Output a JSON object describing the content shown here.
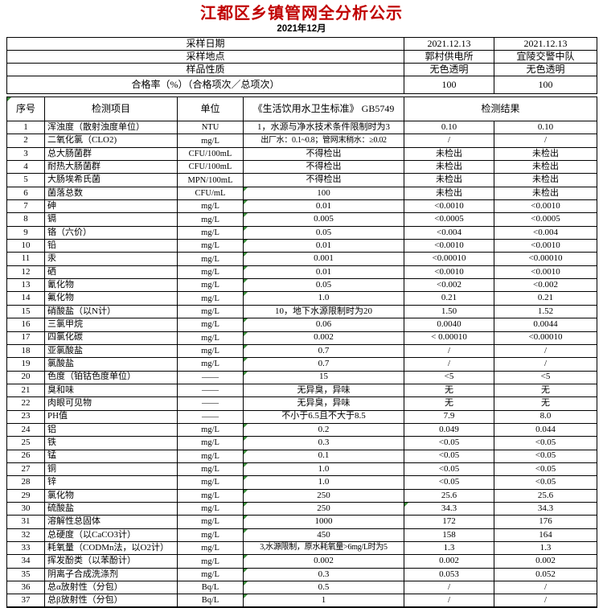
{
  "page": {
    "title": "江都区乡镇管网全分析公示",
    "subtitle": "2021年12月"
  },
  "colors": {
    "title_red": "#c00000",
    "flag_green": "#3c8c3c",
    "border": "#000000"
  },
  "info_table": {
    "rows": [
      {
        "label": "采样日期",
        "v1": "2021.12.13",
        "v2": "2021.12.13"
      },
      {
        "label": "采样地点",
        "v1": "郭村供电所",
        "v2": "宜陵交警中队"
      },
      {
        "label": "样品性质",
        "v1": "无色透明",
        "v2": "无色透明"
      },
      {
        "label": "合格率（%）（合格项次／总项次）",
        "v1": "100",
        "v2": "100",
        "tall": true
      }
    ]
  },
  "main_table": {
    "header": {
      "no": "序号",
      "item": "检测项目",
      "unit": "单位",
      "standard": "《生活饮用水卫生标准》 GB5749",
      "result": "检测结果"
    },
    "rows": [
      {
        "no": "1",
        "item": "浑浊度（散射浊度单位）",
        "unit": "NTU",
        "standard": "1，水源与净水技术条件限制时为3",
        "r1": "0.10",
        "r2": "0.10",
        "flag_std": false
      },
      {
        "no": "2",
        "item": "二氧化氯（CLO2)",
        "unit": "mg/L",
        "standard": "出厂水：0.1~0.8；管网末稍水：≥0.02",
        "r1": "/",
        "r2": "/",
        "flag_std": false
      },
      {
        "no": "3",
        "item": "总大肠菌群",
        "unit": "CFU/100mL",
        "standard": "不得检出",
        "r1": "未检出",
        "r2": "未检出",
        "flag_std": false
      },
      {
        "no": "4",
        "item": "耐热大肠菌群",
        "unit": "CFU/100mL",
        "standard": "不得检出",
        "r1": "未检出",
        "r2": "未检出",
        "flag_std": false
      },
      {
        "no": "5",
        "item": "大肠埃希氏菌",
        "unit": "MPN/100mL",
        "standard": "不得检出",
        "r1": "未检出",
        "r2": "未检出",
        "flag_std": false
      },
      {
        "no": "6",
        "item": "菌落总数",
        "unit": "CFU/mL",
        "standard": "100",
        "r1": "未检出",
        "r2": "未检出",
        "flag_std": true
      },
      {
        "no": "7",
        "item": "砷",
        "unit": "mg/L",
        "standard": "0.01",
        "r1": "<0.0010",
        "r2": "<0.0010",
        "flag_std": true
      },
      {
        "no": "8",
        "item": "镉",
        "unit": "mg/L",
        "standard": "0.005",
        "r1": "<0.0005",
        "r2": "<0.0005",
        "flag_std": true
      },
      {
        "no": "9",
        "item": "铬（六价）",
        "unit": "mg/L",
        "standard": "0.05",
        "r1": "<0.004",
        "r2": "<0.004",
        "flag_std": true
      },
      {
        "no": "10",
        "item": "铅",
        "unit": "mg/L",
        "standard": "0.01",
        "r1": "<0.0010",
        "r2": "<0.0010",
        "flag_std": true
      },
      {
        "no": "11",
        "item": "汞",
        "unit": "mg/L",
        "standard": "0.001",
        "r1": "<0.00010",
        "r2": "<0.00010",
        "flag_std": true
      },
      {
        "no": "12",
        "item": "硒",
        "unit": "mg/L",
        "standard": "0.01",
        "r1": "<0.0010",
        "r2": "<0.0010",
        "flag_std": true
      },
      {
        "no": "13",
        "item": "氰化物",
        "unit": "mg/L",
        "standard": "0.05",
        "r1": "<0.002",
        "r2": "<0.002",
        "flag_std": true
      },
      {
        "no": "14",
        "item": "氟化物",
        "unit": "mg/L",
        "standard": "1.0",
        "r1": "0.21",
        "r2": "0.21",
        "flag_std": true
      },
      {
        "no": "15",
        "item": "硝酸盐（以N计）",
        "unit": "mg/L",
        "standard": "10，地下水源限制时为20",
        "r1": "1.50",
        "r2": "1.52",
        "flag_std": false
      },
      {
        "no": "16",
        "item": "三氯甲烷",
        "unit": "mg/L",
        "standard": "0.06",
        "r1": "0.0040",
        "r2": "0.0044",
        "flag_std": true
      },
      {
        "no": "17",
        "item": "四氯化碳",
        "unit": "mg/L",
        "standard": "0.002",
        "r1": "< 0.00010",
        "r2": "<0.00010",
        "flag_std": true
      },
      {
        "no": "18",
        "item": "亚氯酸盐",
        "unit": "mg/L",
        "standard": "0.7",
        "r1": "/",
        "r2": "/",
        "flag_std": true
      },
      {
        "no": "19",
        "item": "氯酸盐",
        "unit": "mg/L",
        "standard": "0.7",
        "r1": "/",
        "r2": "/",
        "flag_std": true
      },
      {
        "no": "20",
        "item": "色度（铂钴色度单位）",
        "unit": "——",
        "standard": "15",
        "r1": "<5",
        "r2": "<5",
        "flag_std": true
      },
      {
        "no": "21",
        "item": "臭和味",
        "unit": "——",
        "standard": "无异臭，异味",
        "r1": "无",
        "r2": "无",
        "flag_std": false
      },
      {
        "no": "22",
        "item": "肉眼可见物",
        "unit": "——",
        "standard": "无异臭，异味",
        "r1": "无",
        "r2": "无",
        "flag_std": false
      },
      {
        "no": "23",
        "item": "PH值",
        "unit": "——",
        "standard": "不小于6.5且不大于8.5",
        "r1": "7.9",
        "r2": "8.0",
        "flag_std": false
      },
      {
        "no": "24",
        "item": "铝",
        "unit": "mg/L",
        "standard": "0.2",
        "r1": "0.049",
        "r2": "0.044",
        "flag_std": true
      },
      {
        "no": "25",
        "item": "铁",
        "unit": "mg/L",
        "standard": "0.3",
        "r1": "<0.05",
        "r2": "<0.05",
        "flag_std": true
      },
      {
        "no": "26",
        "item": "锰",
        "unit": "mg/L",
        "standard": "0.1",
        "r1": "<0.05",
        "r2": "<0.05",
        "flag_std": true
      },
      {
        "no": "27",
        "item": "铜",
        "unit": "mg/L",
        "standard": "1.0",
        "r1": "<0.05",
        "r2": "<0.05",
        "flag_std": true
      },
      {
        "no": "28",
        "item": "锌",
        "unit": "mg/L",
        "standard": "1.0",
        "r1": "<0.05",
        "r2": "<0.05",
        "flag_std": true
      },
      {
        "no": "29",
        "item": "氯化物",
        "unit": "mg/L",
        "standard": "250",
        "r1": "25.6",
        "r2": "25.6",
        "flag_std": true
      },
      {
        "no": "30",
        "item": "硫酸盐",
        "unit": "mg/L",
        "standard": "250",
        "r1": "34.3",
        "r2": "34.3",
        "flag_std": true,
        "flag_r1": true
      },
      {
        "no": "31",
        "item": "溶解性总固体",
        "unit": "mg/L",
        "standard": "1000",
        "r1": "172",
        "r2": "176",
        "flag_std": true
      },
      {
        "no": "32",
        "item": "总硬度（以CaCO3计）",
        "unit": "mg/L",
        "standard": "450",
        "r1": "158",
        "r2": "164",
        "flag_std": true
      },
      {
        "no": "33",
        "item": "耗氧量（CODMn法，以O2计）",
        "unit": "mg/L",
        "standard": "3,水源限制，原水耗氧量>6mg/L时为5",
        "r1": "1.3",
        "r2": "1.3",
        "flag_std": false
      },
      {
        "no": "34",
        "item": "挥发酚类（以苯酚计）",
        "unit": "mg/L",
        "standard": "0.002",
        "r1": "0.002",
        "r2": "0.002",
        "flag_std": true
      },
      {
        "no": "35",
        "item": "阴离子合成洗涤剂",
        "unit": "mg/L",
        "standard": "0.3",
        "r1": "0.053",
        "r2": "0.052",
        "flag_std": true
      },
      {
        "no": "36",
        "item": "总α放射性（分包）",
        "unit": "Bq/L",
        "standard": "0.5",
        "r1": "/",
        "r2": "/",
        "flag_std": true
      },
      {
        "no": "37",
        "item": "总β放射性（分包）",
        "unit": "Bq/L",
        "standard": "1",
        "r1": "/",
        "r2": "/",
        "flag_std": true
      }
    ]
  }
}
